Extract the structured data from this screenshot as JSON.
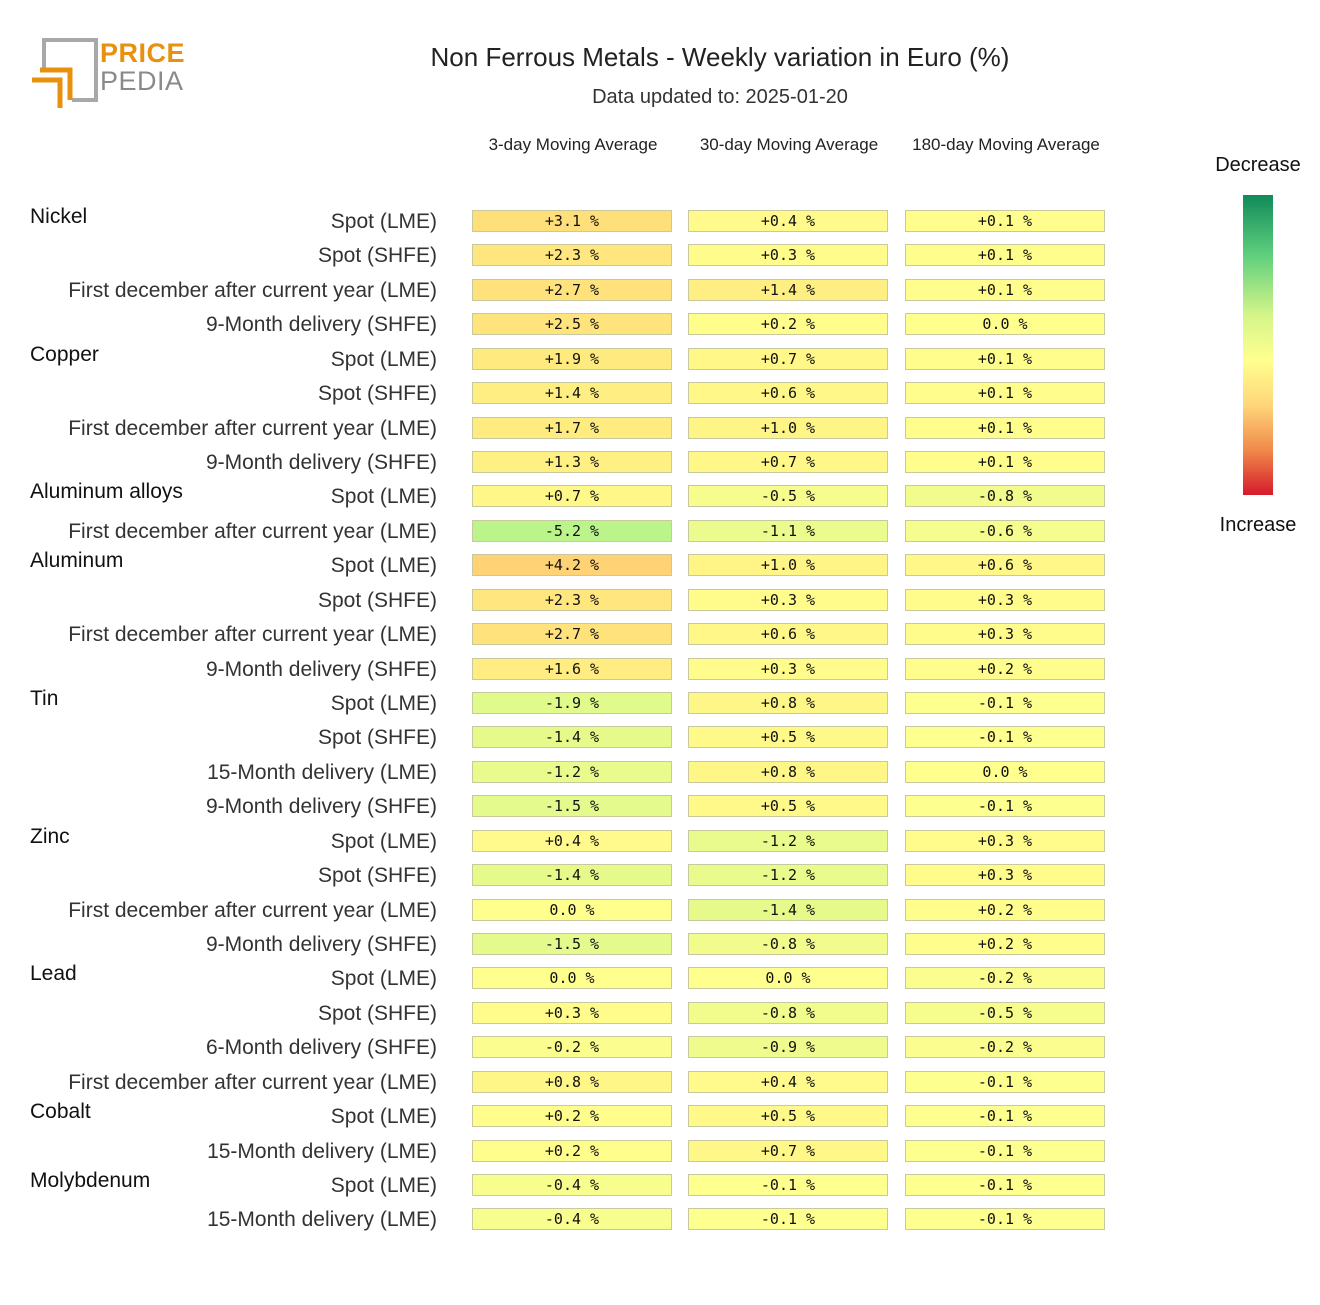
{
  "logo": {
    "line1": "PRICE",
    "line2": "PEDIA"
  },
  "chart_data": {
    "type": "table",
    "title": "Non Ferrous Metals - Weekly variation in Euro (%)",
    "subtitle": "Data updated to: 2025-01-20",
    "columns": [
      "3-day Moving Average",
      "30-day Moving Average",
      "180-day Moving Average"
    ],
    "legend": {
      "top": "Decrease",
      "bottom": "Increase"
    },
    "colors": {
      "green": "#108a5a",
      "neutral": "#ffff8e",
      "red": "#d51a2b"
    },
    "groups": [
      {
        "name": "Nickel",
        "rows": [
          {
            "label": "Spot (LME)",
            "values": [
              3.1,
              0.4,
              0.1
            ],
            "text": [
              "+3.1 %",
              "+0.4 %",
              "+0.1 %"
            ]
          },
          {
            "label": "Spot (SHFE)",
            "values": [
              2.3,
              0.3,
              0.1
            ],
            "text": [
              "+2.3 %",
              "+0.3 %",
              "+0.1 %"
            ]
          },
          {
            "label": "First december after current year (LME)",
            "values": [
              2.7,
              1.4,
              0.1
            ],
            "text": [
              "+2.7 %",
              "+1.4 %",
              "+0.1 %"
            ]
          },
          {
            "label": "9-Month delivery (SHFE)",
            "values": [
              2.5,
              0.2,
              0.0
            ],
            "text": [
              "+2.5 %",
              "+0.2 %",
              "0.0 %"
            ]
          }
        ]
      },
      {
        "name": "Copper",
        "rows": [
          {
            "label": "Spot (LME)",
            "values": [
              1.9,
              0.7,
              0.1
            ],
            "text": [
              "+1.9 %",
              "+0.7 %",
              "+0.1 %"
            ]
          },
          {
            "label": "Spot (SHFE)",
            "values": [
              1.4,
              0.6,
              0.1
            ],
            "text": [
              "+1.4 %",
              "+0.6 %",
              "+0.1 %"
            ]
          },
          {
            "label": "First december after current year (LME)",
            "values": [
              1.7,
              1.0,
              0.1
            ],
            "text": [
              "+1.7 %",
              "+1.0 %",
              "+0.1 %"
            ]
          },
          {
            "label": "9-Month delivery (SHFE)",
            "values": [
              1.3,
              0.7,
              0.1
            ],
            "text": [
              "+1.3 %",
              "+0.7 %",
              "+0.1 %"
            ]
          }
        ]
      },
      {
        "name": "Aluminum alloys",
        "rows": [
          {
            "label": "Spot (LME)",
            "values": [
              0.7,
              -0.5,
              -0.8
            ],
            "text": [
              "+0.7 %",
              "-0.5 %",
              "-0.8 %"
            ]
          },
          {
            "label": "First december after current year (LME)",
            "values": [
              -5.2,
              -1.1,
              -0.6
            ],
            "text": [
              "-5.2 %",
              "-1.1 %",
              "-0.6 %"
            ]
          }
        ]
      },
      {
        "name": "Aluminum",
        "rows": [
          {
            "label": "Spot (LME)",
            "values": [
              4.2,
              1.0,
              0.6
            ],
            "text": [
              "+4.2 %",
              "+1.0 %",
              "+0.6 %"
            ]
          },
          {
            "label": "Spot (SHFE)",
            "values": [
              2.3,
              0.3,
              0.3
            ],
            "text": [
              "+2.3 %",
              "+0.3 %",
              "+0.3 %"
            ]
          },
          {
            "label": "First december after current year (LME)",
            "values": [
              2.7,
              0.6,
              0.3
            ],
            "text": [
              "+2.7 %",
              "+0.6 %",
              "+0.3 %"
            ]
          },
          {
            "label": "9-Month delivery (SHFE)",
            "values": [
              1.6,
              0.3,
              0.2
            ],
            "text": [
              "+1.6 %",
              "+0.3 %",
              "+0.2 %"
            ]
          }
        ]
      },
      {
        "name": "Tin",
        "rows": [
          {
            "label": "Spot (LME)",
            "values": [
              -1.9,
              0.8,
              -0.1
            ],
            "text": [
              "-1.9 %",
              "+0.8 %",
              "-0.1 %"
            ]
          },
          {
            "label": "Spot (SHFE)",
            "values": [
              -1.4,
              0.5,
              -0.1
            ],
            "text": [
              "-1.4 %",
              "+0.5 %",
              "-0.1 %"
            ]
          },
          {
            "label": "15-Month delivery (LME)",
            "values": [
              -1.2,
              0.8,
              0.0
            ],
            "text": [
              "-1.2 %",
              "+0.8 %",
              "0.0 %"
            ]
          },
          {
            "label": "9-Month delivery (SHFE)",
            "values": [
              -1.5,
              0.5,
              -0.1
            ],
            "text": [
              "-1.5 %",
              "+0.5 %",
              "-0.1 %"
            ]
          }
        ]
      },
      {
        "name": "Zinc",
        "rows": [
          {
            "label": "Spot (LME)",
            "values": [
              0.4,
              -1.2,
              0.3
            ],
            "text": [
              "+0.4 %",
              "-1.2 %",
              "+0.3 %"
            ]
          },
          {
            "label": "Spot (SHFE)",
            "values": [
              -1.4,
              -1.2,
              0.3
            ],
            "text": [
              "-1.4 %",
              "-1.2 %",
              "+0.3 %"
            ]
          },
          {
            "label": "First december after current year (LME)",
            "values": [
              0.0,
              -1.4,
              0.2
            ],
            "text": [
              "0.0 %",
              "-1.4 %",
              "+0.2 %"
            ]
          },
          {
            "label": "9-Month delivery (SHFE)",
            "values": [
              -1.5,
              -0.8,
              0.2
            ],
            "text": [
              "-1.5 %",
              "-0.8 %",
              "+0.2 %"
            ]
          }
        ]
      },
      {
        "name": "Lead",
        "rows": [
          {
            "label": "Spot (LME)",
            "values": [
              0.0,
              0.0,
              -0.2
            ],
            "text": [
              "0.0 %",
              "0.0 %",
              "-0.2 %"
            ]
          },
          {
            "label": "Spot (SHFE)",
            "values": [
              0.3,
              -0.8,
              -0.5
            ],
            "text": [
              "+0.3 %",
              "-0.8 %",
              "-0.5 %"
            ]
          },
          {
            "label": "6-Month delivery (SHFE)",
            "values": [
              -0.2,
              -0.9,
              -0.2
            ],
            "text": [
              "-0.2 %",
              "-0.9 %",
              "-0.2 %"
            ]
          },
          {
            "label": "First december after current year (LME)",
            "values": [
              0.8,
              0.4,
              -0.1
            ],
            "text": [
              "+0.8 %",
              "+0.4 %",
              "-0.1 %"
            ]
          }
        ]
      },
      {
        "name": "Cobalt",
        "rows": [
          {
            "label": "Spot (LME)",
            "values": [
              0.2,
              0.5,
              -0.1
            ],
            "text": [
              "+0.2 %",
              "+0.5 %",
              "-0.1 %"
            ]
          },
          {
            "label": "15-Month delivery (LME)",
            "values": [
              0.2,
              0.7,
              -0.1
            ],
            "text": [
              "+0.2 %",
              "+0.7 %",
              "-0.1 %"
            ]
          }
        ]
      },
      {
        "name": "Molybdenum",
        "rows": [
          {
            "label": "Spot (LME)",
            "values": [
              -0.4,
              -0.1,
              -0.1
            ],
            "text": [
              "-0.4 %",
              "-0.1 %",
              "-0.1 %"
            ]
          },
          {
            "label": "15-Month delivery (LME)",
            "values": [
              -0.4,
              -0.1,
              -0.1
            ],
            "text": [
              "-0.4 %",
              "-0.1 %",
              "-0.1 %"
            ]
          }
        ]
      }
    ]
  }
}
